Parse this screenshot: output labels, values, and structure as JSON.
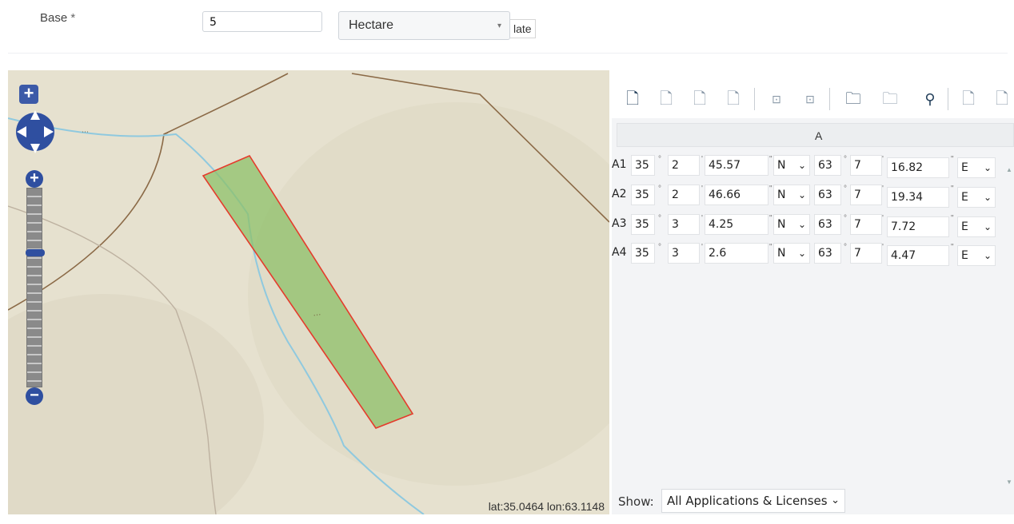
{
  "form": {
    "base_label": "Base",
    "required_mark": "*",
    "base_value": "5",
    "unit_selected": "Hectare",
    "unit_trailing": "late"
  },
  "map": {
    "coord_readout": "lat:35.0464 lon:63.1148",
    "zoom_in": "+",
    "zoom_out": "−",
    "top_zoom": "+",
    "colors": {
      "background": "#e6e1cf",
      "polygon_fill": "#8ec06a",
      "polygon_stroke": "#e53b2c",
      "river": "#8fc9df",
      "road": "#8b6a47"
    }
  },
  "grid": {
    "column_header": "A",
    "degree_mark": "°",
    "minute_mark": "'",
    "second_mark": "\"",
    "rows": [
      {
        "label": "A1",
        "lat_deg": "35",
        "lat_min": "2",
        "lat_sec": "45.57",
        "lat_hem": "N",
        "lon_deg": "63",
        "lon_min": "7",
        "lon_sec": "16.82",
        "lon_hem": "E"
      },
      {
        "label": "A2",
        "lat_deg": "35",
        "lat_min": "2",
        "lat_sec": "46.66",
        "lat_hem": "N",
        "lon_deg": "63",
        "lon_min": "7",
        "lon_sec": "19.34",
        "lon_hem": "E"
      },
      {
        "label": "A3",
        "lat_deg": "35",
        "lat_min": "3",
        "lat_sec": "4.25",
        "lat_hem": "N",
        "lon_deg": "63",
        "lon_min": "7",
        "lon_sec": "7.72",
        "lon_hem": "E"
      },
      {
        "label": "A4",
        "lat_deg": "35",
        "lat_min": "3",
        "lat_sec": "2.6",
        "lat_hem": "N",
        "lon_deg": "63",
        "lon_min": "7",
        "lon_sec": "4.47",
        "lon_hem": "E"
      }
    ]
  },
  "toolbar": {
    "icons": [
      "add-document-icon",
      "add-point-icon",
      "insert-point-icon",
      "remove-point-icon",
      "move-up-icon",
      "move-down-icon",
      "add-shape-icon",
      "remove-shape-icon",
      "location-pin-icon",
      "import-icon",
      "export-icon"
    ]
  },
  "footer": {
    "show_label": "Show:",
    "show_selected": "All Applications & Licenses"
  }
}
